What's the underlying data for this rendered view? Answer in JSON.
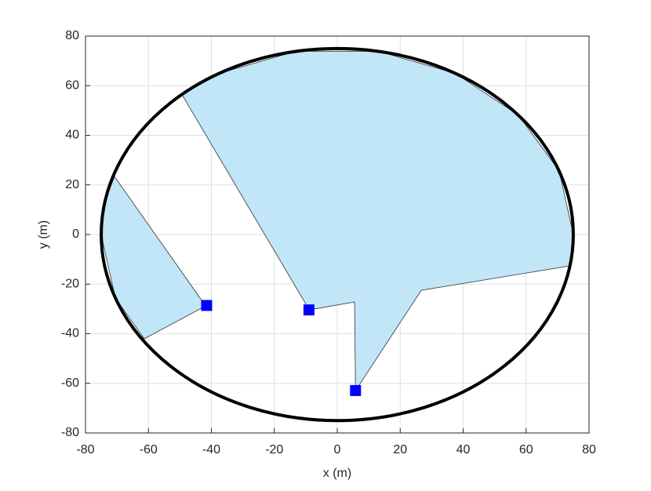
{
  "chart_data": {
    "type": "coverage",
    "xlabel": "x (m)",
    "ylabel": "y (m)",
    "xlim": [
      -80,
      80
    ],
    "ylim": [
      -80,
      80
    ],
    "xticks": [
      -80,
      -60,
      -40,
      -20,
      0,
      20,
      40,
      60,
      80
    ],
    "yticks": [
      -80,
      -60,
      -40,
      -20,
      0,
      20,
      40,
      60,
      80
    ],
    "grid": true,
    "boundary": {
      "cx": 0,
      "cy": 0,
      "r": 75,
      "color": "#000000"
    },
    "region_color": "#c0e6f7",
    "regions": [
      {
        "x": [
          -70.8,
          -43.6,
          -41.5,
          -61.3,
          -70.5,
          -75,
          -73.9
        ],
        "y": [
          23.4,
          -25.6,
          -28.6,
          -42,
          -25.7,
          0,
          13
        ]
      },
      {
        "x": [
          -49.3,
          -10.5,
          -9,
          5.5,
          5.8,
          26.7,
          74,
          75,
          70.5,
          57.5,
          37.5,
          13,
          -13,
          -37.5
        ],
        "y": [
          56.3,
          -26.9,
          -30.4,
          -27.2,
          -62.9,
          -22.5,
          -12.6,
          0,
          25.7,
          48.2,
          65,
          73.9,
          73.9,
          65
        ]
      }
    ],
    "sensors": {
      "x": [
        -41.5,
        -9,
        5.8
      ],
      "y": [
        -28.6,
        -30.4,
        -62.9
      ],
      "color": "#0000ff"
    }
  }
}
